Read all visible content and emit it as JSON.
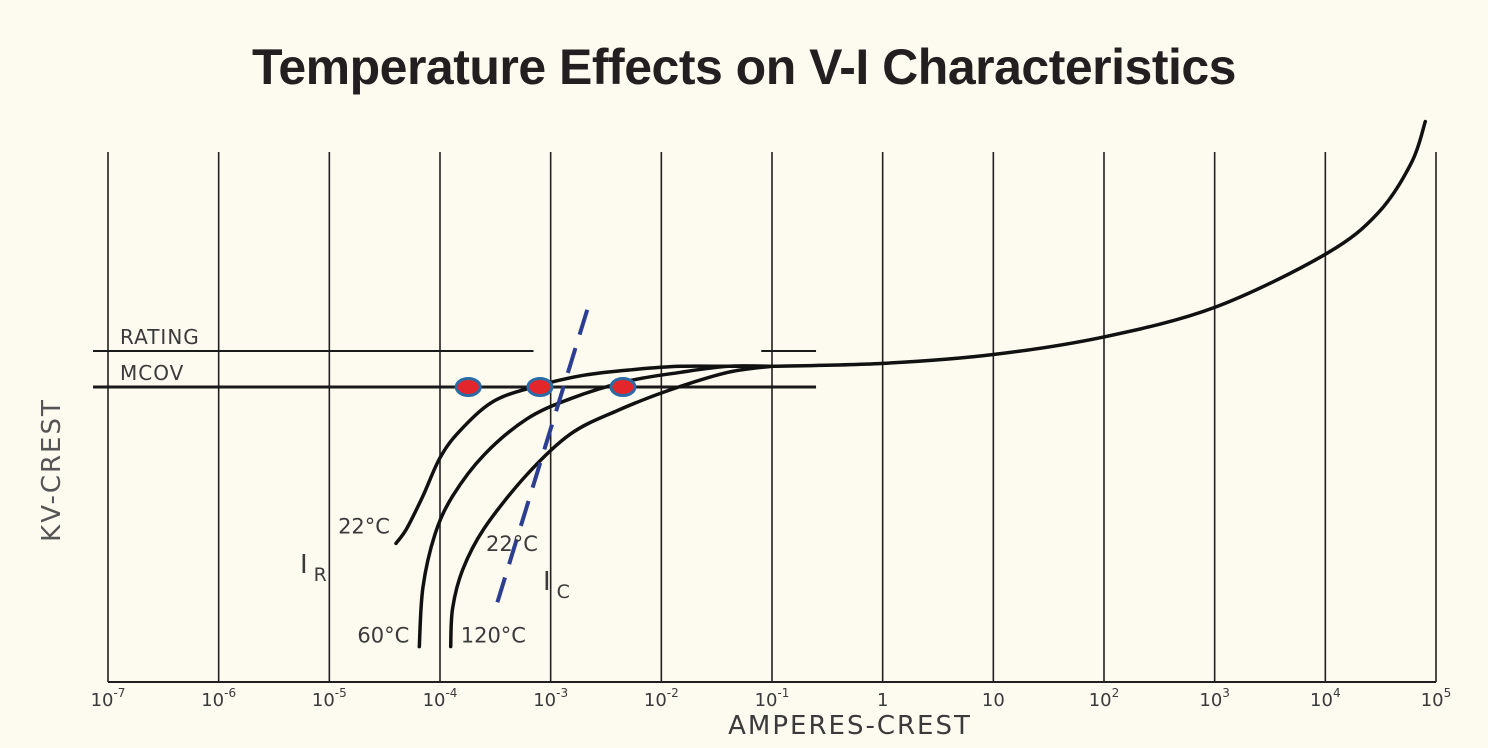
{
  "chart_data": {
    "type": "line",
    "title": "Temperature Effects on V-I Characteristics",
    "xlabel": "AMPERES-CREST",
    "ylabel": "KV-CREST",
    "x_scale": "log",
    "xlim": [
      1e-07,
      100000
    ],
    "x_ticks": [
      1e-07,
      1e-06,
      1e-05,
      0.0001,
      0.001,
      0.01,
      0.1,
      1,
      10,
      100,
      1000,
      10000,
      100000
    ],
    "x_tick_labels": [
      {
        "base": "10",
        "exp": "-7"
      },
      {
        "base": "10",
        "exp": "-6"
      },
      {
        "base": "10",
        "exp": "-5"
      },
      {
        "base": "10",
        "exp": "-4"
      },
      {
        "base": "10",
        "exp": "-3"
      },
      {
        "base": "10",
        "exp": "-2"
      },
      {
        "base": "10",
        "exp": "-1"
      },
      {
        "base": "1",
        "exp": ""
      },
      {
        "base": "10",
        "exp": ""
      },
      {
        "base": "10",
        "exp": "2"
      },
      {
        "base": "10",
        "exp": "3"
      },
      {
        "base": "10",
        "exp": "4"
      },
      {
        "base": "10",
        "exp": "5"
      }
    ],
    "y_ticks": "none",
    "grid": "vertical",
    "reference_lines": [
      {
        "label": "RATING",
        "y": 1.0,
        "x_range": [
          1.2e-07,
          0.0007
        ]
      },
      {
        "label": "MCOV",
        "y": 0.9,
        "x_range": [
          1.2e-07,
          0.25
        ]
      }
    ],
    "series": [
      {
        "label": "22°C",
        "x": [
          4e-05,
          5e-05,
          7e-05,
          0.0001,
          0.00015,
          0.0003,
          0.0007,
          0.002,
          0.006,
          0.015,
          0.04,
          0.1
        ],
        "y": [
          0.47,
          0.52,
          0.63,
          0.76,
          0.85,
          0.95,
          1.0,
          1.04,
          1.06,
          1.07,
          1.07,
          1.07
        ]
      },
      {
        "label": "60°C",
        "x": [
          6.5e-05,
          7e-05,
          9e-05,
          0.00013,
          0.00025,
          0.0006,
          0.0015,
          0.005,
          0.015,
          0.04,
          0.1
        ],
        "y": [
          0.12,
          0.32,
          0.5,
          0.63,
          0.77,
          0.89,
          0.96,
          1.02,
          1.05,
          1.07,
          1.07
        ]
      },
      {
        "label": "120°C",
        "x": [
          0.000125,
          0.00013,
          0.00016,
          0.00025,
          0.0006,
          0.0015,
          0.004,
          0.012,
          0.04,
          0.1
        ],
        "y": [
          0.12,
          0.25,
          0.38,
          0.52,
          0.7,
          0.84,
          0.92,
          0.99,
          1.05,
          1.07
        ]
      },
      {
        "label": "",
        "x": [
          0.1,
          1,
          10,
          100,
          1000,
          10000,
          30000,
          60000,
          80000
        ],
        "y": [
          1.07,
          1.08,
          1.11,
          1.17,
          1.27,
          1.45,
          1.59,
          1.76,
          1.9
        ]
      }
    ],
    "capacitive_line": {
      "label": "I",
      "sub": "C",
      "temp_label": "22°C",
      "x": [
        0.00033,
        0.0023
      ],
      "y": [
        0.27,
        1.3
      ],
      "color": "#2c3e8f"
    },
    "resistive_label": {
      "label": "I",
      "sub": "R"
    },
    "mcov_points": [
      {
        "x": 0.00018,
        "y": 0.9
      },
      {
        "x": 0.0008,
        "y": 0.9
      },
      {
        "x": 0.0045,
        "y": 0.9
      }
    ],
    "point_fill": "#e2262c",
    "point_stroke": "#2b6ba6",
    "grid_color": "#231f20"
  }
}
